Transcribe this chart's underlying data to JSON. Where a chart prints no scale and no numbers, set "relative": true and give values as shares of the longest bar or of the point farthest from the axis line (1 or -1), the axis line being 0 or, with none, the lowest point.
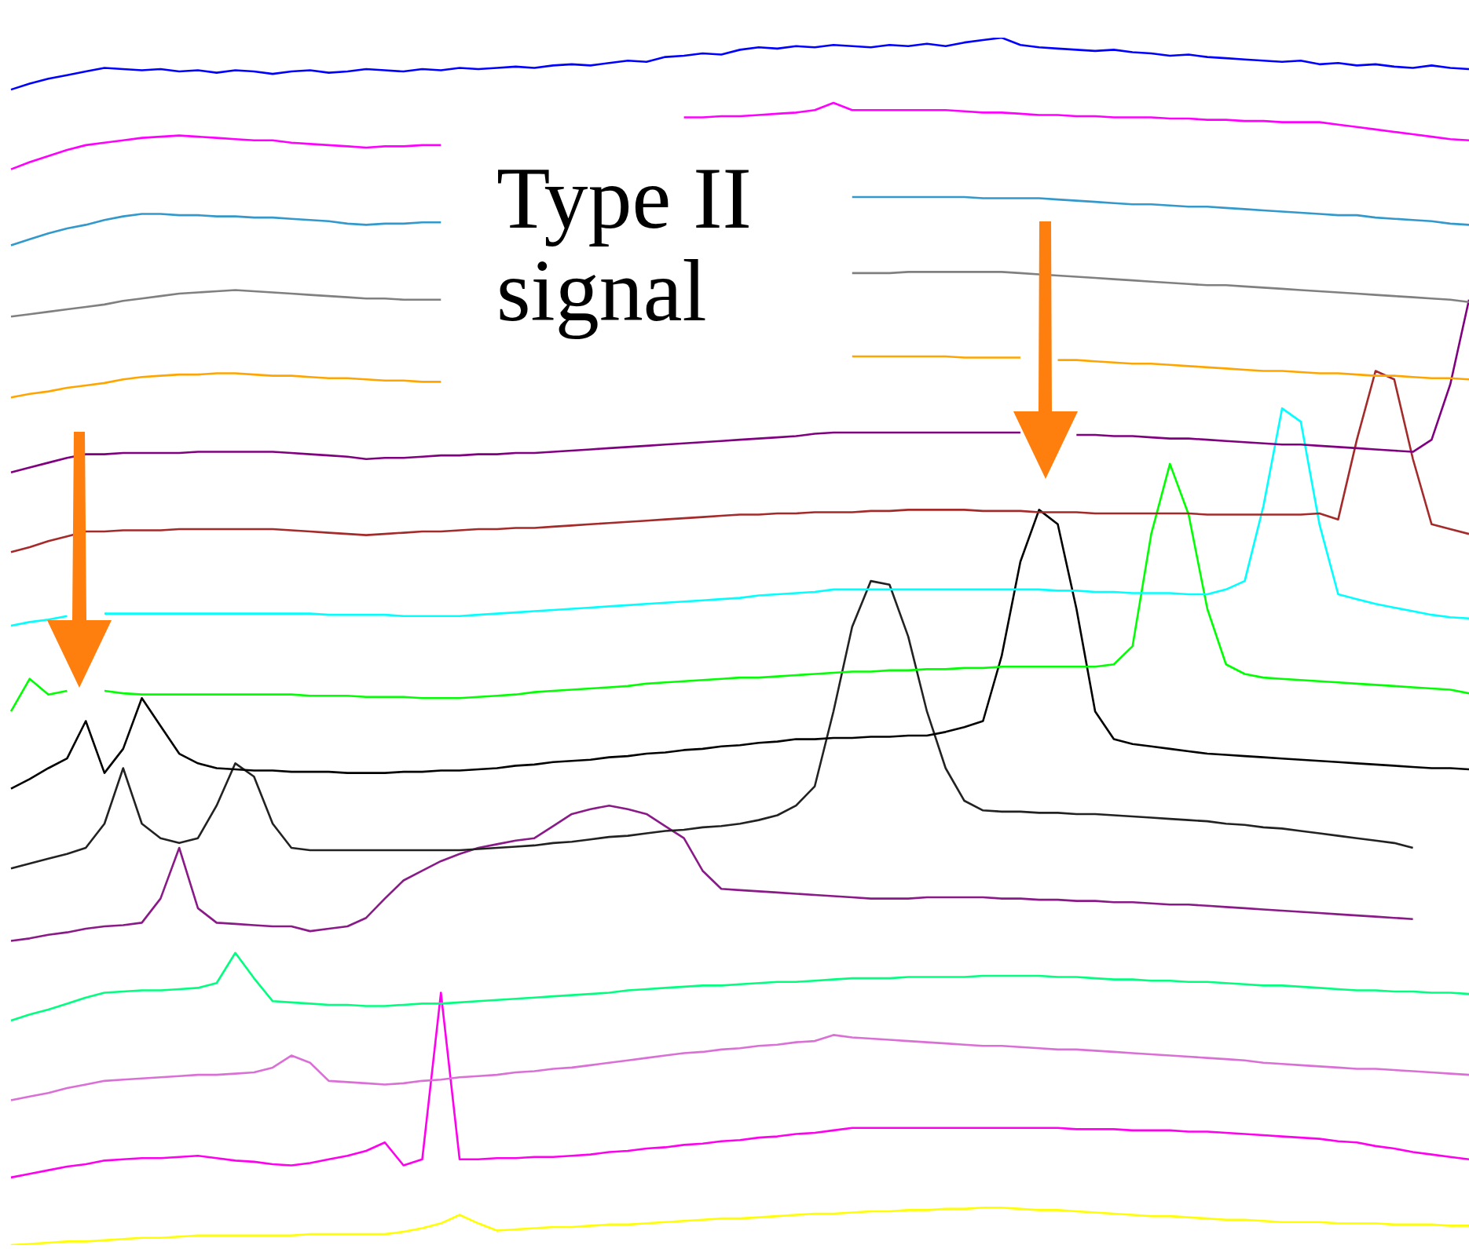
{
  "chart_data": {
    "type": "line",
    "relative": true,
    "categories": [
      null,
      null,
      null,
      null,
      null,
      null,
      null,
      null,
      null,
      null,
      null,
      null,
      null,
      null,
      null,
      null,
      null,
      null,
      null,
      null,
      null,
      null,
      null,
      null,
      null,
      null,
      null,
      null,
      null,
      null,
      null,
      null,
      null,
      null,
      null,
      null,
      null,
      null,
      null,
      null,
      null,
      null,
      null,
      null,
      null,
      null,
      null,
      null,
      null,
      null,
      null,
      null,
      null,
      null,
      null,
      null,
      null,
      null,
      null,
      null,
      null,
      null,
      null,
      null,
      null,
      null,
      null,
      null,
      null,
      null,
      null,
      null,
      null,
      null,
      null,
      null,
      null,
      null,
      null
    ],
    "annotations": [
      "Type II\nsignal"
    ],
    "series": [
      {
        "color": "#0000ff",
        "values": [
          0.957,
          0.962,
          0.966,
          0.969,
          0.972,
          0.975,
          0.974,
          0.973,
          0.974,
          0.972,
          0.973,
          0.971,
          0.973,
          0.972,
          0.97,
          0.972,
          0.973,
          0.971,
          0.972,
          0.974,
          0.973,
          0.972,
          0.974,
          0.973,
          0.975,
          0.974,
          0.975,
          0.976,
          0.975,
          0.977,
          0.978,
          0.977,
          0.979,
          0.981,
          0.98,
          0.984,
          0.985,
          0.987,
          0.986,
          0.99,
          0.992,
          0.991,
          0.993,
          0.992,
          0.994,
          0.993,
          0.992,
          0.994,
          0.993,
          0.995,
          0.993,
          0.996,
          0.998,
          1.0,
          0.994,
          0.992,
          0.991,
          0.99,
          0.989,
          0.99,
          0.988,
          0.987,
          0.985,
          0.986,
          0.984,
          0.983,
          0.982,
          0.981,
          0.98,
          0.981,
          0.978,
          0.979,
          0.977,
          0.978,
          0.976,
          0.975,
          0.977,
          0.975,
          0.974
        ]
      },
      {
        "color": "#ff00ff",
        "values": [
          0.891,
          0.897,
          0.902,
          0.907,
          0.911,
          0.913,
          0.915,
          0.917,
          0.918,
          0.919,
          0.918,
          0.917,
          0.916,
          0.915,
          0.915,
          0.913,
          0.912,
          0.911,
          0.91,
          0.909,
          0.91,
          0.91,
          0.911,
          0.911,
          null,
          null,
          null,
          null,
          null,
          null,
          null,
          null,
          null,
          null,
          null,
          null,
          0.934,
          0.934,
          0.935,
          0.935,
          0.936,
          0.937,
          0.938,
          0.94,
          0.946,
          0.94,
          0.94,
          0.94,
          0.94,
          0.94,
          0.94,
          0.939,
          0.938,
          0.938,
          0.937,
          0.936,
          0.936,
          0.935,
          0.935,
          0.934,
          0.934,
          0.934,
          0.933,
          0.933,
          0.932,
          0.932,
          0.931,
          0.931,
          0.93,
          0.93,
          0.93,
          0.928,
          0.926,
          0.924,
          0.922,
          0.92,
          0.918,
          0.916,
          0.915
        ]
      },
      {
        "color": "#3399cc",
        "values": [
          0.828,
          0.833,
          0.838,
          0.842,
          0.845,
          0.849,
          0.852,
          0.854,
          0.854,
          0.853,
          0.853,
          0.852,
          0.852,
          0.851,
          0.851,
          0.85,
          0.849,
          0.848,
          0.846,
          0.845,
          0.846,
          0.846,
          0.847,
          0.847,
          null,
          null,
          null,
          null,
          null,
          null,
          null,
          null,
          null,
          null,
          null,
          null,
          null,
          null,
          null,
          null,
          null,
          null,
          null,
          null,
          null,
          0.868,
          0.868,
          0.868,
          0.868,
          0.868,
          0.868,
          0.868,
          0.867,
          0.867,
          0.867,
          0.867,
          0.866,
          0.865,
          0.864,
          0.863,
          0.862,
          0.862,
          0.861,
          0.86,
          0.86,
          0.859,
          0.858,
          0.857,
          0.856,
          0.855,
          0.854,
          0.853,
          0.853,
          0.851,
          0.85,
          0.849,
          0.848,
          0.846,
          0.845
        ]
      },
      {
        "color": "#808080",
        "values": [
          0.769,
          0.771,
          0.773,
          0.775,
          0.777,
          0.779,
          0.782,
          0.784,
          0.786,
          0.788,
          0.789,
          0.79,
          0.791,
          0.79,
          0.789,
          0.788,
          0.787,
          0.786,
          0.785,
          0.784,
          0.784,
          0.783,
          0.783,
          0.783,
          null,
          null,
          null,
          null,
          null,
          null,
          null,
          null,
          null,
          null,
          null,
          null,
          null,
          null,
          null,
          null,
          null,
          null,
          null,
          null,
          null,
          0.805,
          0.805,
          0.805,
          0.806,
          0.806,
          0.806,
          0.806,
          0.806,
          0.806,
          0.805,
          0.804,
          0.803,
          0.802,
          0.801,
          0.8,
          0.799,
          0.798,
          0.797,
          0.796,
          0.795,
          0.795,
          0.794,
          0.793,
          0.792,
          0.791,
          0.79,
          0.789,
          0.788,
          0.787,
          0.786,
          0.785,
          0.784,
          0.783,
          0.781
        ]
      },
      {
        "color": "#ffa500",
        "values": [
          0.702,
          0.705,
          0.707,
          0.71,
          0.712,
          0.714,
          0.717,
          0.719,
          0.72,
          0.721,
          0.721,
          0.722,
          0.722,
          0.721,
          0.72,
          0.72,
          0.719,
          0.718,
          0.718,
          0.717,
          0.716,
          0.716,
          0.715,
          0.715,
          null,
          null,
          null,
          null,
          null,
          null,
          null,
          null,
          null,
          null,
          null,
          null,
          null,
          null,
          null,
          null,
          null,
          null,
          null,
          null,
          null,
          0.736,
          0.736,
          0.736,
          0.736,
          0.736,
          0.736,
          0.735,
          0.735,
          0.735,
          0.735,
          null,
          0.733,
          0.733,
          0.732,
          0.731,
          0.73,
          0.73,
          0.729,
          0.728,
          0.727,
          0.726,
          0.725,
          0.724,
          0.724,
          0.723,
          0.722,
          0.722,
          0.721,
          0.72,
          0.72,
          0.719,
          0.718,
          0.718,
          0.717
        ]
      },
      {
        "color": "#800080",
        "values": [
          0.64,
          0.644,
          0.648,
          0.652,
          0.655,
          0.655,
          0.656,
          0.656,
          0.656,
          0.656,
          0.657,
          0.657,
          0.657,
          0.657,
          0.657,
          0.656,
          0.655,
          0.654,
          0.653,
          0.651,
          0.652,
          0.652,
          0.653,
          0.654,
          0.654,
          0.655,
          0.655,
          0.656,
          0.656,
          0.657,
          0.658,
          0.659,
          0.66,
          0.661,
          0.662,
          0.663,
          0.664,
          0.665,
          0.666,
          0.667,
          0.668,
          0.669,
          0.67,
          0.672,
          0.673,
          0.673,
          0.673,
          0.673,
          0.673,
          0.673,
          0.673,
          0.673,
          0.673,
          0.673,
          0.673,
          null,
          null,
          0.671,
          0.671,
          0.67,
          0.67,
          0.669,
          0.668,
          0.668,
          0.667,
          0.666,
          0.665,
          0.664,
          0.663,
          0.663,
          0.662,
          0.661,
          0.66,
          0.659,
          0.658,
          0.657,
          0.667,
          0.713,
          0.783
        ]
      },
      {
        "color": "#a52a2a",
        "values": [
          0.574,
          0.578,
          0.583,
          0.587,
          0.591,
          0.591,
          0.592,
          0.592,
          0.592,
          0.593,
          0.593,
          0.593,
          0.593,
          0.593,
          0.593,
          0.592,
          0.591,
          0.59,
          0.589,
          0.588,
          0.589,
          0.59,
          0.591,
          0.591,
          0.592,
          0.593,
          0.593,
          0.594,
          0.594,
          0.595,
          0.596,
          0.597,
          0.598,
          0.599,
          0.6,
          0.601,
          0.602,
          0.603,
          0.604,
          0.605,
          0.605,
          0.606,
          0.606,
          0.607,
          0.607,
          0.607,
          0.608,
          0.608,
          0.609,
          0.609,
          0.609,
          0.609,
          0.608,
          0.608,
          0.608,
          0.607,
          0.607,
          0.607,
          0.606,
          0.606,
          0.606,
          0.606,
          0.606,
          0.606,
          0.605,
          0.605,
          0.605,
          0.605,
          0.605,
          0.605,
          0.606,
          0.601,
          0.667,
          0.724,
          0.717,
          0.651,
          0.597,
          0.593,
          0.589
        ]
      },
      {
        "color": "#00ffff",
        "values": [
          0.513,
          0.516,
          0.518,
          0.521,
          null,
          0.523,
          0.523,
          0.523,
          0.523,
          0.523,
          0.523,
          0.523,
          0.523,
          0.523,
          0.523,
          0.523,
          0.523,
          0.522,
          0.522,
          0.522,
          0.522,
          0.521,
          0.521,
          0.521,
          0.521,
          0.522,
          0.523,
          0.524,
          0.525,
          0.526,
          0.527,
          0.528,
          0.529,
          0.53,
          0.531,
          0.532,
          0.533,
          0.534,
          0.535,
          0.536,
          0.538,
          0.539,
          0.54,
          0.541,
          0.543,
          0.543,
          0.543,
          0.543,
          0.543,
          0.543,
          0.543,
          0.543,
          0.543,
          0.543,
          0.543,
          0.543,
          0.542,
          0.542,
          0.541,
          0.541,
          0.54,
          0.54,
          0.54,
          0.539,
          0.539,
          0.543,
          0.55,
          0.612,
          0.693,
          0.682,
          0.597,
          0.539,
          0.535,
          0.531,
          0.528,
          0.525,
          0.522,
          0.52,
          0.519
        ]
      },
      {
        "color": "#00ff00",
        "values": [
          0.442,
          0.469,
          0.456,
          0.459,
          null,
          0.459,
          0.457,
          0.456,
          0.456,
          0.456,
          0.456,
          0.456,
          0.456,
          0.456,
          0.456,
          0.456,
          0.455,
          0.455,
          0.455,
          0.454,
          0.454,
          0.454,
          0.453,
          0.453,
          0.453,
          0.454,
          0.455,
          0.456,
          0.458,
          0.459,
          0.46,
          0.461,
          0.462,
          0.463,
          0.465,
          0.466,
          0.467,
          0.468,
          0.469,
          0.47,
          0.47,
          0.471,
          0.472,
          0.473,
          0.474,
          0.475,
          0.475,
          0.476,
          0.476,
          0.477,
          0.477,
          0.478,
          0.478,
          0.479,
          0.479,
          0.479,
          0.479,
          0.479,
          0.479,
          0.481,
          0.496,
          0.589,
          0.647,
          0.605,
          0.527,
          0.481,
          0.473,
          0.47,
          0.469,
          0.468,
          0.467,
          0.466,
          0.465,
          0.464,
          0.463,
          0.462,
          0.461,
          0.46,
          0.457
        ]
      },
      {
        "color": "#000000",
        "values": [
          0.378,
          0.386,
          0.395,
          0.403,
          0.434,
          0.391,
          0.411,
          0.453,
          0.43,
          0.407,
          0.399,
          0.395,
          0.394,
          0.393,
          0.393,
          0.392,
          0.392,
          0.392,
          0.391,
          0.391,
          0.391,
          0.392,
          0.392,
          0.393,
          0.393,
          0.394,
          0.395,
          0.397,
          0.398,
          0.4,
          0.401,
          0.402,
          0.404,
          0.405,
          0.407,
          0.408,
          0.41,
          0.411,
          0.413,
          0.414,
          0.416,
          0.417,
          0.419,
          0.419,
          0.42,
          0.42,
          0.421,
          0.421,
          0.422,
          0.422,
          0.425,
          0.429,
          0.434,
          0.488,
          0.566,
          0.609,
          0.597,
          0.527,
          0.442,
          0.419,
          0.415,
          0.413,
          0.411,
          0.409,
          0.407,
          0.406,
          0.405,
          0.404,
          0.403,
          0.402,
          0.401,
          0.4,
          0.399,
          0.398,
          0.397,
          0.396,
          0.395,
          0.395,
          0.394
        ]
      },
      {
        "color": "#222222",
        "values": [
          0.312,
          0.316,
          0.32,
          0.324,
          0.329,
          0.349,
          0.395,
          0.349,
          0.337,
          0.333,
          0.337,
          0.364,
          0.399,
          0.388,
          0.349,
          0.329,
          0.327,
          0.327,
          0.327,
          0.327,
          0.327,
          0.327,
          0.327,
          0.327,
          0.327,
          0.328,
          0.329,
          0.33,
          0.331,
          0.333,
          0.334,
          0.336,
          0.338,
          0.339,
          0.341,
          0.343,
          0.344,
          0.346,
          0.347,
          0.349,
          0.352,
          0.356,
          0.364,
          0.38,
          0.442,
          0.512,
          0.55,
          0.547,
          0.504,
          0.442,
          0.395,
          0.368,
          0.36,
          0.359,
          0.359,
          0.358,
          0.358,
          0.357,
          0.357,
          0.356,
          0.355,
          0.354,
          0.353,
          0.352,
          0.351,
          0.349,
          0.348,
          0.346,
          0.345,
          0.343,
          0.341,
          0.339,
          0.337,
          0.335,
          0.333,
          0.329,
          null,
          null,
          null
        ]
      },
      {
        "color": "#8b1a89",
        "values": [
          0.252,
          0.254,
          0.257,
          0.259,
          0.262,
          0.264,
          0.265,
          0.267,
          0.287,
          0.329,
          0.279,
          0.267,
          0.266,
          0.265,
          0.264,
          0.264,
          0.26,
          0.262,
          0.264,
          0.271,
          0.287,
          0.302,
          0.31,
          0.318,
          0.324,
          0.329,
          0.332,
          0.335,
          0.337,
          0.347,
          0.357,
          0.361,
          0.364,
          0.361,
          0.357,
          0.347,
          0.337,
          0.31,
          0.295,
          0.294,
          0.293,
          0.292,
          0.291,
          0.29,
          0.289,
          0.288,
          0.287,
          0.287,
          0.287,
          0.288,
          0.288,
          0.288,
          0.288,
          0.287,
          0.287,
          0.286,
          0.286,
          0.285,
          0.285,
          0.284,
          0.284,
          0.283,
          0.282,
          0.282,
          0.281,
          0.28,
          0.279,
          0.278,
          0.277,
          0.276,
          0.275,
          0.274,
          0.273,
          0.272,
          0.271,
          0.27,
          null,
          null,
          null
        ]
      },
      {
        "color": "#00ff7f",
        "values": [
          0.186,
          0.191,
          0.195,
          0.2,
          0.205,
          0.209,
          0.21,
          0.211,
          0.211,
          0.212,
          0.213,
          0.217,
          0.242,
          0.221,
          0.202,
          0.201,
          0.2,
          0.199,
          0.199,
          0.198,
          0.198,
          0.199,
          0.2,
          0.2,
          0.201,
          0.202,
          0.203,
          0.204,
          0.205,
          0.206,
          0.207,
          0.208,
          0.209,
          0.211,
          0.212,
          0.213,
          0.214,
          0.215,
          0.215,
          0.216,
          0.217,
          0.218,
          0.218,
          0.219,
          0.22,
          0.221,
          0.221,
          0.221,
          0.222,
          0.222,
          0.222,
          0.222,
          0.223,
          0.223,
          0.223,
          0.223,
          0.222,
          0.222,
          0.221,
          0.22,
          0.22,
          0.219,
          0.219,
          0.218,
          0.218,
          0.217,
          0.216,
          0.215,
          0.215,
          0.214,
          0.213,
          0.212,
          0.211,
          0.211,
          0.21,
          0.21,
          0.209,
          0.209,
          0.208
        ]
      },
      {
        "color": "#da70d6",
        "values": [
          0.12,
          0.123,
          0.126,
          0.13,
          0.133,
          0.136,
          0.137,
          0.138,
          0.139,
          0.14,
          0.141,
          0.141,
          0.142,
          0.143,
          0.147,
          0.157,
          0.151,
          0.136,
          0.135,
          0.134,
          0.133,
          0.134,
          0.136,
          0.137,
          0.139,
          0.14,
          0.141,
          0.143,
          0.144,
          0.146,
          0.147,
          0.149,
          0.151,
          0.153,
          0.155,
          0.157,
          0.159,
          0.16,
          0.162,
          0.163,
          0.165,
          0.166,
          0.168,
          0.169,
          0.174,
          0.172,
          0.171,
          0.17,
          0.169,
          0.168,
          0.167,
          0.166,
          0.165,
          0.165,
          0.164,
          0.163,
          0.162,
          0.162,
          0.161,
          0.16,
          0.159,
          0.158,
          0.157,
          0.156,
          0.155,
          0.154,
          0.153,
          0.151,
          0.15,
          0.149,
          0.148,
          0.147,
          0.146,
          0.146,
          0.145,
          0.144,
          0.143,
          0.142,
          0.141
        ]
      },
      {
        "color": "#ff00ee",
        "values": [
          0.056,
          0.059,
          0.062,
          0.065,
          0.067,
          0.07,
          0.071,
          0.072,
          0.072,
          0.073,
          0.074,
          0.072,
          0.07,
          0.069,
          0.067,
          0.066,
          0.068,
          0.071,
          0.074,
          0.078,
          0.085,
          0.066,
          0.071,
          0.209,
          0.071,
          0.071,
          0.072,
          0.072,
          0.073,
          0.073,
          0.074,
          0.075,
          0.077,
          0.078,
          0.08,
          0.081,
          0.083,
          0.084,
          0.086,
          0.087,
          0.089,
          0.09,
          0.092,
          0.093,
          0.095,
          0.097,
          0.097,
          0.097,
          0.097,
          0.097,
          0.097,
          0.097,
          0.097,
          0.097,
          0.097,
          0.097,
          0.097,
          0.096,
          0.096,
          0.096,
          0.095,
          0.095,
          0.095,
          0.094,
          0.094,
          0.093,
          0.092,
          0.091,
          0.09,
          0.089,
          0.088,
          0.086,
          0.085,
          0.082,
          0.08,
          0.077,
          0.075,
          0.073,
          0.071
        ]
      },
      {
        "color": "#ffff00",
        "values": [
          0,
          0.001,
          0.002,
          0.003,
          0.003,
          0.004,
          0.005,
          0.006,
          0.006,
          0.007,
          0.008,
          0.008,
          0.008,
          0.008,
          0.008,
          0.008,
          0.009,
          0.009,
          0.009,
          0.009,
          0.009,
          0.011,
          0.014,
          0.018,
          0.025,
          0.018,
          0.012,
          0.013,
          0.014,
          0.015,
          0.015,
          0.016,
          0.017,
          0.017,
          0.018,
          0.019,
          0.02,
          0.021,
          0.022,
          0.022,
          0.023,
          0.024,
          0.025,
          0.026,
          0.026,
          0.027,
          0.028,
          0.028,
          0.029,
          0.029,
          0.03,
          0.03,
          0.031,
          0.031,
          0.03,
          0.029,
          0.029,
          0.028,
          0.027,
          0.026,
          0.025,
          0.024,
          0.024,
          0.023,
          0.022,
          0.021,
          0.021,
          0.02,
          0.019,
          0.019,
          0.019,
          0.018,
          0.018,
          0.018,
          0.017,
          0.017,
          0.017,
          0.016,
          0.016
        ]
      }
    ]
  }
}
